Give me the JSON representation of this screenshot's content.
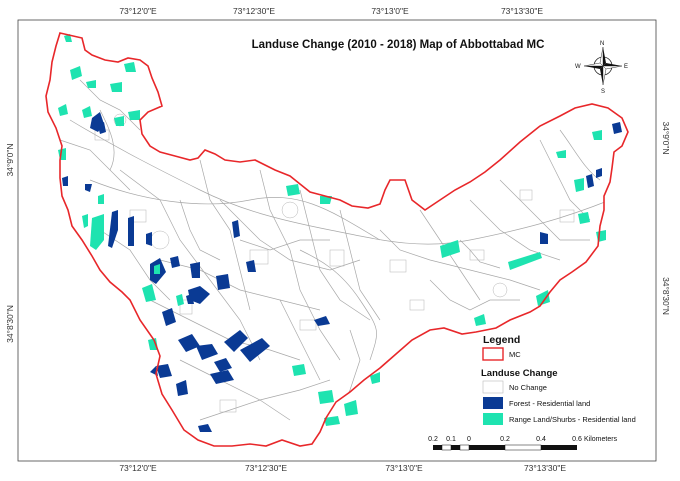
{
  "map": {
    "title": "Landuse Change (2010 - 2018) Map of Abbottabad MC",
    "colors": {
      "boundary": "#e8272a",
      "no_change": "#ffffff",
      "forest_residential": "#0a3a94",
      "range_residential": "#1ee3b0",
      "roads": "#9a9a9a"
    },
    "coords_top": [
      "73°12'0\"E",
      "73°12'30\"E",
      "73°13'0\"E",
      "73°13'30\"E"
    ],
    "coords_bottom": [
      "73°12'0\"E",
      "73°12'30\"E",
      "73°13'0\"E",
      "73°13'30\"E"
    ],
    "coords_left": [
      "34°9'0\"N",
      "34°8'30\"N"
    ],
    "coords_right": [
      "34°9'0\"N",
      "34°8'30\"N"
    ],
    "legend": {
      "title": "Legend",
      "boundary_label": "MC",
      "subtitle": "Landuse Change",
      "items": [
        "No Change",
        "Forest - Residential land",
        "Range Land/Shurbs - Residential land"
      ]
    },
    "scale_bar": {
      "ticks": [
        "0.2",
        "0.1",
        "0",
        "0.2",
        "0.4",
        "0.6"
      ],
      "unit": "Kilometers"
    },
    "north_arrow": {
      "n": "N",
      "e": "E",
      "s": "S",
      "w": "W",
      "icon": "compass-rose-icon"
    }
  }
}
